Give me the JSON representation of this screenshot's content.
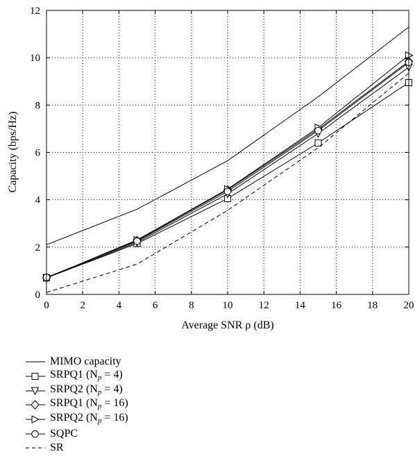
{
  "chart_data": {
    "type": "line",
    "x": [
      0,
      5,
      10,
      15,
      20
    ],
    "xlabel": "Average SNR ρ (dB)",
    "ylabel": "Capacity (bps/Hz)",
    "xlim": [
      0,
      20
    ],
    "ylim": [
      0,
      12
    ],
    "xticks": [
      "0",
      "2",
      "4",
      "6",
      "8",
      "10",
      "12",
      "14",
      "16",
      "18",
      "20"
    ],
    "yticks": [
      "0",
      "2",
      "4",
      "6",
      "8",
      "10",
      "12"
    ],
    "grid": true,
    "legend_position": "below",
    "series": [
      {
        "name": "MIMO capacity",
        "marker": "none",
        "dash": "solid",
        "values": [
          2.1,
          3.6,
          5.65,
          8.35,
          11.3
        ]
      },
      {
        "name": "SRPQ1 (Np = 4)",
        "marker": "square",
        "dash": "solid",
        "values": [
          0.7,
          2.15,
          4.05,
          6.4,
          8.95
        ]
      },
      {
        "name": "SRPQ2 (Np = 4)",
        "marker": "triangle-down",
        "dash": "solid",
        "values": [
          0.7,
          2.2,
          4.25,
          6.8,
          9.6
        ]
      },
      {
        "name": "SRPQ1 (Np = 16)",
        "marker": "diamond",
        "dash": "solid",
        "values": [
          0.7,
          2.28,
          4.42,
          6.98,
          9.85
        ]
      },
      {
        "name": "SRPQ2 (Np = 16)",
        "marker": "triangle-right",
        "dash": "solid",
        "values": [
          0.7,
          2.3,
          4.45,
          7.05,
          10.1
        ]
      },
      {
        "name": "SQPC",
        "marker": "circle",
        "dash": "solid",
        "values": [
          0.72,
          2.25,
          4.35,
          6.92,
          9.8
        ]
      },
      {
        "name": "SR",
        "marker": "none",
        "dash": "dashed",
        "values": [
          0.08,
          1.28,
          3.55,
          6.2,
          9.35
        ]
      }
    ]
  },
  "legend": [
    {
      "prefix": "MIMO capacity",
      "sub": "",
      "suffix": ""
    },
    {
      "prefix": "SRPQ1 (N",
      "sub": "p",
      "suffix": " = 4)"
    },
    {
      "prefix": "SRPQ2 (N",
      "sub": "p",
      "suffix": " = 4)"
    },
    {
      "prefix": "SRPQ1 (N",
      "sub": "p",
      "suffix": " = 16)"
    },
    {
      "prefix": "SRPQ2 (N",
      "sub": "p",
      "suffix": " = 16)"
    },
    {
      "prefix": "SQPC",
      "sub": "",
      "suffix": ""
    },
    {
      "prefix": "SR",
      "sub": "",
      "suffix": ""
    }
  ]
}
